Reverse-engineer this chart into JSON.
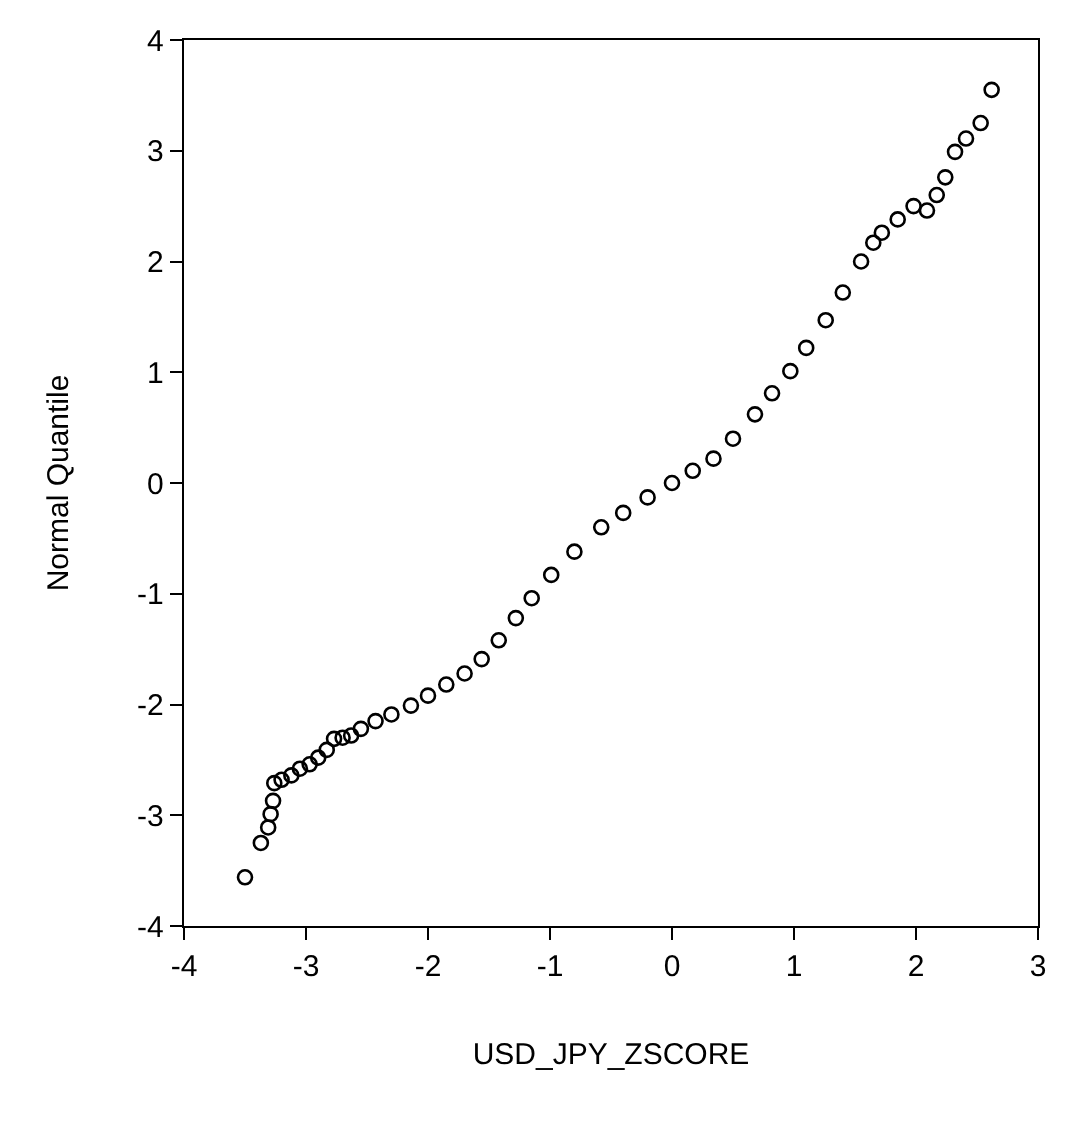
{
  "chart_data": {
    "type": "scatter",
    "xlabel": "USD_JPY_ZSCORE",
    "ylabel": "Normal Quantile",
    "xlim": [
      -4,
      3
    ],
    "ylim": [
      -4,
      4
    ],
    "xticks": [
      -4,
      -3,
      -2,
      -1,
      0,
      1,
      2,
      3
    ],
    "yticks": [
      -4,
      -3,
      -2,
      -1,
      0,
      1,
      2,
      3,
      4
    ],
    "grid": false,
    "legend": false,
    "marker": "circle",
    "series": [
      {
        "color": "#000000",
        "x": [
          -3.5,
          -3.37,
          -3.31,
          -3.29,
          -3.27,
          -3.26,
          -3.2,
          -3.12,
          -3.05,
          -2.97,
          -2.9,
          -2.83,
          -2.77,
          -2.7,
          -2.63,
          -2.55,
          -2.43,
          -2.3,
          -2.14,
          -2.0,
          -1.85,
          -1.7,
          -1.56,
          -1.42,
          -1.28,
          -1.15,
          -0.99,
          -0.8,
          -0.58,
          -0.4,
          -0.2,
          0,
          0.17,
          0.34,
          0.5,
          0.68,
          0.82,
          0.97,
          1.1,
          1.26,
          1.4,
          1.55,
          1.65,
          1.72,
          1.85,
          1.98,
          2.09,
          2.17,
          2.24,
          2.32,
          2.41,
          2.53,
          2.62
        ],
        "values": [
          -3.56,
          -3.25,
          -3.11,
          -2.99,
          -2.87,
          -2.71,
          -2.68,
          -2.64,
          -2.58,
          -2.54,
          -2.48,
          -2.41,
          -2.31,
          -2.3,
          -2.28,
          -2.22,
          -2.15,
          -2.09,
          -2.01,
          -1.92,
          -1.82,
          -1.72,
          -1.59,
          -1.42,
          -1.22,
          -1.04,
          -0.83,
          -0.62,
          -0.4,
          -0.27,
          -0.13,
          0,
          0.11,
          0.22,
          0.4,
          0.62,
          0.81,
          1.01,
          1.22,
          1.47,
          1.72,
          2.0,
          2.17,
          2.26,
          2.38,
          2.5,
          2.46,
          2.6,
          2.76,
          2.99,
          3.11,
          3.25,
          3.55
        ]
      }
    ]
  }
}
